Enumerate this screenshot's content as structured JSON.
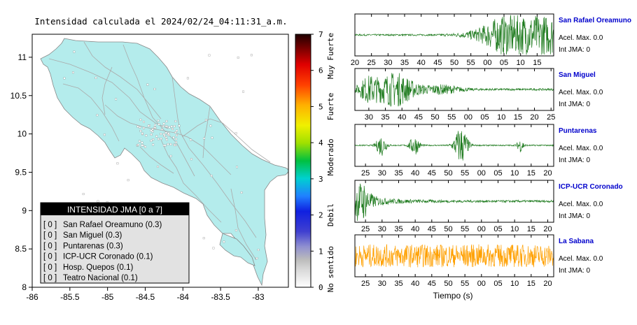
{
  "title": "Intensidad calculada el 2024/02/24_04:11:31_a.m.",
  "map": {
    "x_ticks": [
      "-86",
      "-85.5",
      "-85",
      "-84.5",
      "-84",
      "-83.5",
      "-83"
    ],
    "y_ticks": [
      "11",
      "10.5",
      "10",
      "9.5",
      "9",
      "8.5",
      "8"
    ],
    "xlim": [
      -86,
      -82.6
    ],
    "ylim": [
      8,
      11.3
    ],
    "land_color": "#b4ecec",
    "road_color": "#aaaaaa"
  },
  "legend": {
    "header": "INTENSIDAD JMA [0 a 7]",
    "items": [
      {
        "level": "[ 0 ]",
        "station": "San Rafael Oreamuno (0.3)"
      },
      {
        "level": "[ 0 ]",
        "station": "San Miguel (0.3)"
      },
      {
        "level": "[ 0 ]",
        "station": "Puntarenas (0.3)"
      },
      {
        "level": "[ 0 ]",
        "station": "ICP-UCR Coronado (0.1)"
      },
      {
        "level": "[ 0 ]",
        "station": "Hosp. Quepos (0.1)"
      },
      {
        "level": "[ 0 ]",
        "station": "Teatro Nacional (0.1)"
      }
    ]
  },
  "colorbar": {
    "ticks": [
      "0",
      "1",
      "2",
      "3",
      "4",
      "5",
      "6",
      "7"
    ],
    "categories": [
      "No sentido",
      "Debil",
      "Moderado",
      "Fuerte",
      "Muy Fuerte"
    ]
  },
  "colors": {
    "green_trace": "#1d7a1d",
    "orange_trace": "#ffa000",
    "station_title": "#0000cc"
  },
  "xlabel": "Tiempo (s)",
  "chart_data": {
    "type": "line",
    "panels": [
      {
        "name": "San Rafael Oreamuno",
        "acel": "Acel. Max. 0.0",
        "jma": "Int JMA: 0",
        "ticks": [
          "20",
          "25",
          "30",
          "35",
          "40",
          "45",
          "50",
          "55",
          "00",
          "05",
          "10",
          "15"
        ],
        "tick_start": 20,
        "span": 60,
        "bursts": [
          {
            "t": 49,
            "w": 11,
            "a": 0.9
          }
        ],
        "noise": 0.04,
        "grow": true,
        "color": "green"
      },
      {
        "name": "San Miguel",
        "acel": "Acel. Max. 0.0",
        "jma": "Int JMA: 0",
        "ticks": [
          "30",
          "35",
          "40",
          "45",
          "50",
          "55",
          "00",
          "05",
          "10",
          "15",
          "20",
          "25"
        ],
        "tick_start": 25.8,
        "span": 60,
        "bursts": [
          {
            "t": 12,
            "w": 6,
            "a": 0.8
          },
          {
            "t": 4,
            "w": 3,
            "a": 0.5
          },
          {
            "t": 26,
            "w": 6,
            "a": 0.2
          }
        ],
        "noise": 0.05,
        "color": "green"
      },
      {
        "name": "Puntarenas",
        "acel": "Acel. Max. 0.0",
        "jma": "Int JMA: 0",
        "ticks": [
          "25",
          "30",
          "35",
          "40",
          "45",
          "50",
          "55",
          "00",
          "05",
          "10",
          "15",
          "20"
        ],
        "tick_start": 21.8,
        "span": 60,
        "bursts": [
          {
            "t": 8,
            "w": 1.5,
            "a": 0.5
          },
          {
            "t": 18,
            "w": 1.5,
            "a": 0.45
          },
          {
            "t": 32,
            "w": 2,
            "a": 0.9
          },
          {
            "t": 50,
            "w": 1,
            "a": 0.3
          }
        ],
        "noise": 0.03,
        "color": "green"
      },
      {
        "name": "ICP-UCR Coronado",
        "acel": "Acel. Max. 0.0",
        "jma": "Int JMA: 0",
        "ticks": [
          "25",
          "30",
          "35",
          "40",
          "45",
          "50",
          "55",
          "00",
          "05",
          "10",
          "15",
          "20"
        ],
        "tick_start": 21.8,
        "span": 60,
        "bursts": [
          {
            "t": 0.5,
            "w": 3,
            "a": 0.9
          }
        ],
        "noise": 0.05,
        "decay": true,
        "color": "green"
      },
      {
        "name": "La Sabana",
        "acel": "Acel. Max. 0.0",
        "jma": "Int JMA: 0",
        "ticks": [
          "25",
          "30",
          "35",
          "40",
          "45",
          "50",
          "55",
          "00",
          "05",
          "10",
          "15",
          "20"
        ],
        "tick_start": 21.8,
        "span": 60,
        "bursts": [],
        "noise": 0.55,
        "color": "orange"
      }
    ]
  }
}
